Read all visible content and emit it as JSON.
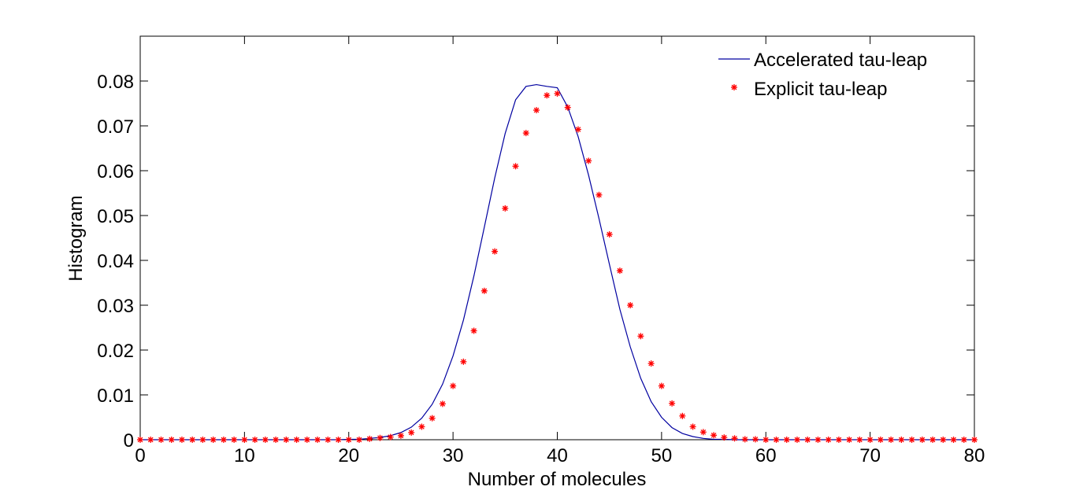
{
  "chart_data": {
    "type": "line",
    "title": "",
    "xlabel": "Number of molecules",
    "ylabel": "Histogram",
    "xlim": [
      0,
      80
    ],
    "ylim": [
      0,
      0.09
    ],
    "xticks": [
      0,
      10,
      20,
      30,
      40,
      50,
      60,
      70,
      80
    ],
    "xtick_labels": [
      "0",
      "10",
      "20",
      "30",
      "40",
      "50",
      "60",
      "70",
      "80"
    ],
    "yticks": [
      0,
      0.01,
      0.02,
      0.03,
      0.04,
      0.05,
      0.06,
      0.07,
      0.08
    ],
    "ytick_labels": [
      "0",
      "0.01",
      "0.02",
      "0.03",
      "0.04",
      "0.05",
      "0.06",
      "0.07",
      "0.08"
    ],
    "grid": false,
    "legend_position": "top-right",
    "series": [
      {
        "name": "Accelerated tau-leap",
        "style": "line",
        "color": "#0000a0",
        "x": [
          0,
          1,
          2,
          3,
          4,
          5,
          6,
          7,
          8,
          9,
          10,
          11,
          12,
          13,
          14,
          15,
          16,
          17,
          18,
          19,
          20,
          21,
          22,
          23,
          24,
          25,
          26,
          27,
          28,
          29,
          30,
          31,
          32,
          33,
          34,
          35,
          36,
          37,
          38,
          39,
          40,
          41,
          42,
          43,
          44,
          45,
          46,
          47,
          48,
          49,
          50,
          51,
          52,
          53,
          54,
          55,
          56,
          57,
          58,
          59,
          60,
          61,
          62,
          63,
          64,
          65,
          66,
          67,
          68,
          69,
          70,
          71,
          72,
          73,
          74,
          75,
          76,
          77,
          78,
          79,
          80
        ],
        "y": [
          0,
          0,
          0,
          0,
          0,
          0,
          0,
          0,
          0,
          0,
          0,
          0,
          0,
          0,
          0,
          0,
          0,
          0,
          0,
          0,
          0.0001,
          0.0001,
          0.0003,
          0.0005,
          0.0009,
          0.0016,
          0.0028,
          0.0048,
          0.0079,
          0.0124,
          0.0187,
          0.0267,
          0.0365,
          0.0474,
          0.0584,
          0.0683,
          0.0758,
          0.0788,
          0.0792,
          0.0788,
          0.0785,
          0.0742,
          0.0676,
          0.059,
          0.0493,
          0.0391,
          0.0291,
          0.0207,
          0.0137,
          0.0085,
          0.005,
          0.0027,
          0.0014,
          0.0007,
          0.0003,
          0.0001,
          0.0001,
          0,
          0,
          0,
          0,
          0,
          0,
          0,
          0,
          0,
          0,
          0,
          0,
          0,
          0,
          0,
          0,
          0,
          0,
          0,
          0,
          0,
          0,
          0,
          0
        ]
      },
      {
        "name": "Explicit tau-leap",
        "style": "marker",
        "marker": "*",
        "color": "#ff0000",
        "x": [
          0,
          1,
          2,
          3,
          4,
          5,
          6,
          7,
          8,
          9,
          10,
          11,
          12,
          13,
          14,
          15,
          16,
          17,
          18,
          19,
          20,
          21,
          22,
          23,
          24,
          25,
          26,
          27,
          28,
          29,
          30,
          31,
          32,
          33,
          34,
          35,
          36,
          37,
          38,
          39,
          40,
          41,
          42,
          43,
          44,
          45,
          46,
          47,
          48,
          49,
          50,
          51,
          52,
          53,
          54,
          55,
          56,
          57,
          58,
          59,
          60,
          61,
          62,
          63,
          64,
          65,
          66,
          67,
          68,
          69,
          70,
          71,
          72,
          73,
          74,
          75,
          76,
          77,
          78,
          79,
          80
        ],
        "y": [
          0,
          0,
          0,
          0,
          0,
          0,
          0,
          0,
          0,
          0,
          0,
          0,
          0,
          0,
          0,
          0,
          0,
          0,
          0,
          0,
          0,
          0,
          0.0002,
          0.0004,
          0.0006,
          0.0009,
          0.0016,
          0.0029,
          0.0048,
          0.008,
          0.012,
          0.0174,
          0.0243,
          0.0332,
          0.042,
          0.0516,
          0.061,
          0.0684,
          0.0735,
          0.0768,
          0.0772,
          0.0741,
          0.0692,
          0.0622,
          0.0546,
          0.0458,
          0.0377,
          0.03,
          0.0231,
          0.017,
          0.012,
          0.0081,
          0.0053,
          0.0029,
          0.0017,
          0.001,
          0.0005,
          0.0003,
          0.0001,
          0.0001,
          0,
          0,
          0,
          0,
          0,
          0,
          0,
          0,
          0,
          0,
          0,
          0,
          0,
          0,
          0,
          0,
          0,
          0,
          0,
          0,
          0
        ]
      }
    ]
  }
}
